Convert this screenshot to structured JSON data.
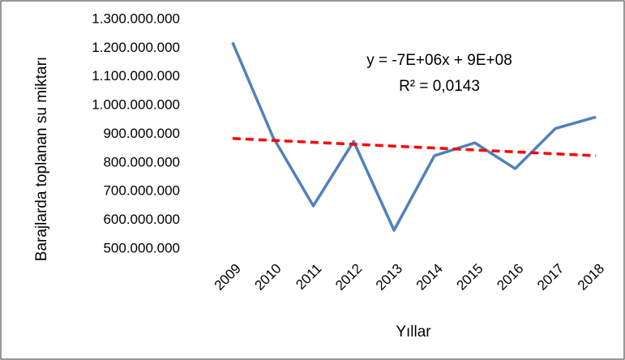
{
  "chart_data": {
    "type": "line",
    "x_label": "Yıllar",
    "y_label": "Barajlarda toplanan su miktarı",
    "categories": [
      "2009",
      "2010",
      "2011",
      "2012",
      "2013",
      "2014",
      "2015",
      "2016",
      "2017",
      "2018"
    ],
    "series": [
      {
        "color": "#4f81bd",
        "values": [
          1220000000,
          890000000,
          650000000,
          875000000,
          565000000,
          825000000,
          870000000,
          780000000,
          920000000,
          960000000
        ]
      }
    ],
    "trendline": {
      "start": 885000000,
      "end": 825000000,
      "color": "#ff0000",
      "dashed": true
    },
    "annotations": [
      "y = -7E+06x + 9E+08",
      "R² = 0,0143"
    ],
    "ylim": [
      500000000,
      1300000000
    ],
    "yticks": [
      {
        "value": 500000000,
        "label": "500.000.000"
      },
      {
        "value": 600000000,
        "label": "600.000.000"
      },
      {
        "value": 700000000,
        "label": "700.000.000"
      },
      {
        "value": 800000000,
        "label": "800.000.000"
      },
      {
        "value": 900000000,
        "label": "900.000.000"
      },
      {
        "value": 1000000000,
        "label": "1.000.000.000"
      },
      {
        "value": 1100000000,
        "label": "1.100.000.000"
      },
      {
        "value": 1200000000,
        "label": "1.200.000.000"
      },
      {
        "value": 1300000000,
        "label": "1.300.000.000"
      }
    ],
    "grid": false
  }
}
